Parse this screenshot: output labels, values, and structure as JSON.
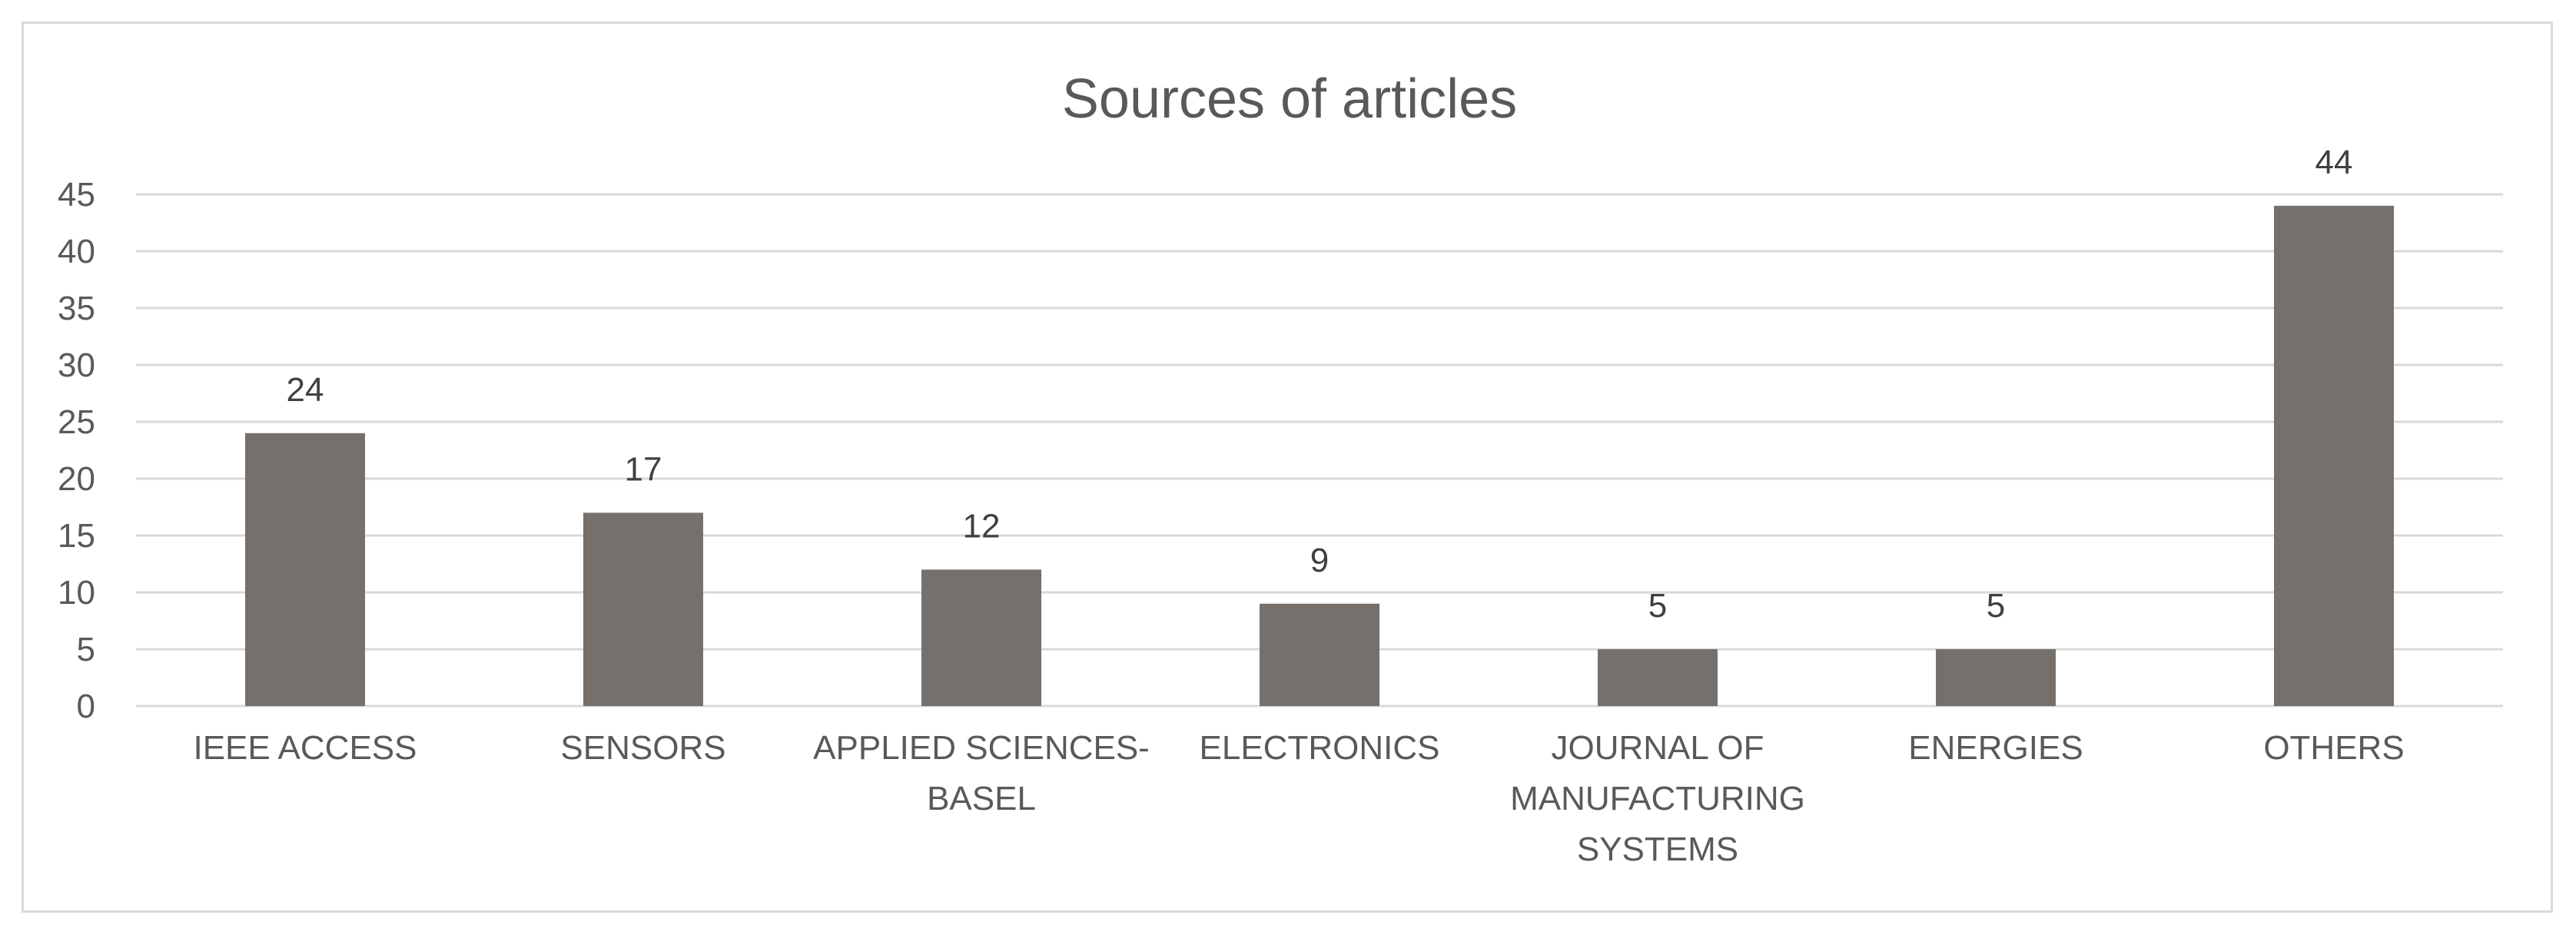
{
  "chart_data": {
    "type": "bar",
    "title": "Sources of articles",
    "xlabel": "",
    "ylabel": "",
    "categories": [
      [
        "IEEE ACCESS"
      ],
      [
        "SENSORS"
      ],
      [
        "APPLIED SCIENCES-",
        "BASEL"
      ],
      [
        "ELECTRONICS"
      ],
      [
        "JOURNAL OF",
        "MANUFACTURING",
        "SYSTEMS"
      ],
      [
        "ENERGIES"
      ],
      [
        "OTHERS"
      ]
    ],
    "values": [
      24,
      17,
      12,
      9,
      5,
      5,
      44
    ],
    "data_labels": [
      "24",
      "17",
      "12",
      "9",
      "5",
      "5",
      "44"
    ],
    "ylim": [
      0,
      45
    ],
    "yticks": [
      "0",
      "5",
      "10",
      "15",
      "20",
      "25",
      "30",
      "35",
      "40",
      "45"
    ],
    "grid": true,
    "legend": "none"
  },
  "colors": {
    "bar": "#76706d",
    "grid": "#d9d9d9",
    "text": "#595959",
    "frame": "#d9d9d9"
  }
}
